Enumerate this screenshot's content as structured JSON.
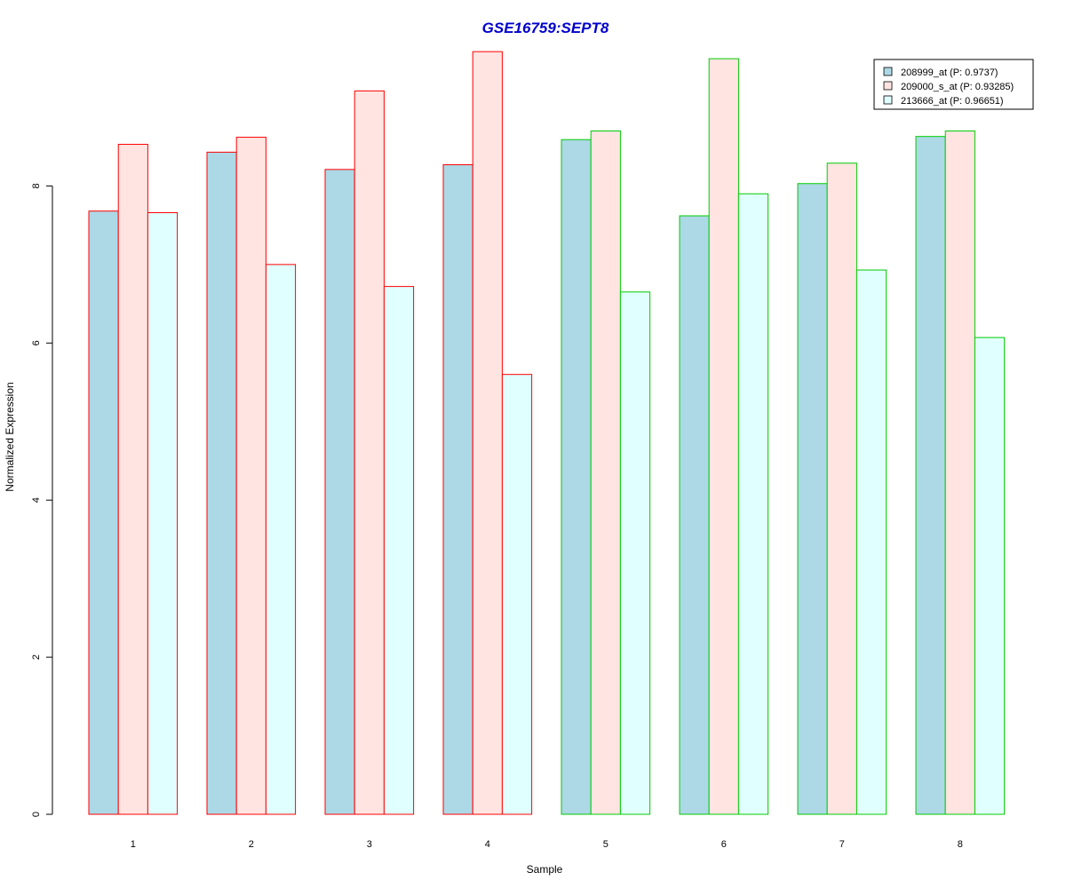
{
  "chart_data": {
    "type": "bar",
    "title": "GSE16759:SEPT8",
    "title_color": "#0000cc",
    "xlabel": "Sample",
    "ylabel": "Normalized Expression",
    "categories": [
      "1",
      "2",
      "3",
      "4",
      "5",
      "6",
      "7",
      "8"
    ],
    "ylim": [
      0,
      9.7
    ],
    "yticks": [
      "0",
      "2",
      "4",
      "6",
      "8"
    ],
    "grid": false,
    "legend_position": "top-right",
    "group_border_colors": [
      "#ff0000",
      "#ff0000",
      "#ff0000",
      "#ff0000",
      "#00cc00",
      "#00cc00",
      "#00cc00",
      "#00cc00"
    ],
    "series": [
      {
        "name": "208999_at (P: 0.9737)",
        "color": "#add8e6",
        "values": [
          7.68,
          8.43,
          8.21,
          8.27,
          8.59,
          7.62,
          8.03,
          8.63
        ]
      },
      {
        "name": "209000_s_at (P: 0.93285)",
        "color": "#ffe4e1",
        "values": [
          8.53,
          8.62,
          9.21,
          9.71,
          8.7,
          9.62,
          8.29,
          8.7
        ]
      },
      {
        "name": "213666_at (P: 0.96651)",
        "color": "#e0ffff",
        "values": [
          7.66,
          7.0,
          6.72,
          5.6,
          6.65,
          7.9,
          6.93,
          6.07
        ]
      }
    ]
  }
}
